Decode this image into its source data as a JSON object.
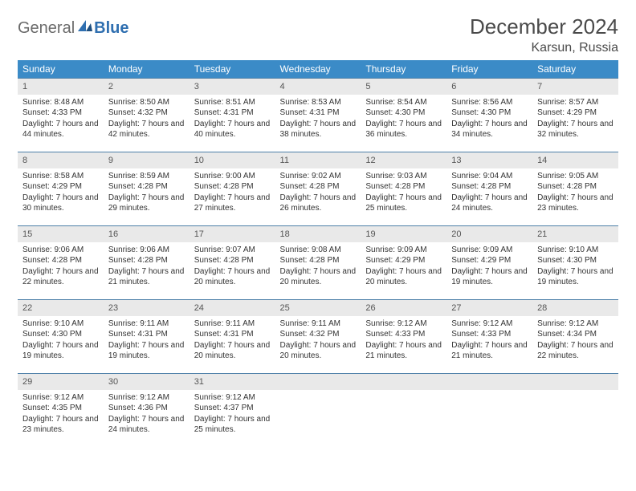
{
  "logo": {
    "general": "General",
    "blue": "Blue"
  },
  "title": "December 2024",
  "location": "Karsun, Russia",
  "colors": {
    "header_bg": "#3b8bc7",
    "header_text": "#ffffff",
    "daynum_bg": "#e9e9e9",
    "row_border": "#4d7fa8",
    "logo_gray": "#6a6a6a",
    "logo_blue": "#2f6fb0"
  },
  "weekdays": [
    "Sunday",
    "Monday",
    "Tuesday",
    "Wednesday",
    "Thursday",
    "Friday",
    "Saturday"
  ],
  "days": [
    {
      "n": "1",
      "sunrise": "8:48 AM",
      "sunset": "4:33 PM",
      "daylight": "7 hours and 44 minutes."
    },
    {
      "n": "2",
      "sunrise": "8:50 AM",
      "sunset": "4:32 PM",
      "daylight": "7 hours and 42 minutes."
    },
    {
      "n": "3",
      "sunrise": "8:51 AM",
      "sunset": "4:31 PM",
      "daylight": "7 hours and 40 minutes."
    },
    {
      "n": "4",
      "sunrise": "8:53 AM",
      "sunset": "4:31 PM",
      "daylight": "7 hours and 38 minutes."
    },
    {
      "n": "5",
      "sunrise": "8:54 AM",
      "sunset": "4:30 PM",
      "daylight": "7 hours and 36 minutes."
    },
    {
      "n": "6",
      "sunrise": "8:56 AM",
      "sunset": "4:30 PM",
      "daylight": "7 hours and 34 minutes."
    },
    {
      "n": "7",
      "sunrise": "8:57 AM",
      "sunset": "4:29 PM",
      "daylight": "7 hours and 32 minutes."
    },
    {
      "n": "8",
      "sunrise": "8:58 AM",
      "sunset": "4:29 PM",
      "daylight": "7 hours and 30 minutes."
    },
    {
      "n": "9",
      "sunrise": "8:59 AM",
      "sunset": "4:28 PM",
      "daylight": "7 hours and 29 minutes."
    },
    {
      "n": "10",
      "sunrise": "9:00 AM",
      "sunset": "4:28 PM",
      "daylight": "7 hours and 27 minutes."
    },
    {
      "n": "11",
      "sunrise": "9:02 AM",
      "sunset": "4:28 PM",
      "daylight": "7 hours and 26 minutes."
    },
    {
      "n": "12",
      "sunrise": "9:03 AM",
      "sunset": "4:28 PM",
      "daylight": "7 hours and 25 minutes."
    },
    {
      "n": "13",
      "sunrise": "9:04 AM",
      "sunset": "4:28 PM",
      "daylight": "7 hours and 24 minutes."
    },
    {
      "n": "14",
      "sunrise": "9:05 AM",
      "sunset": "4:28 PM",
      "daylight": "7 hours and 23 minutes."
    },
    {
      "n": "15",
      "sunrise": "9:06 AM",
      "sunset": "4:28 PM",
      "daylight": "7 hours and 22 minutes."
    },
    {
      "n": "16",
      "sunrise": "9:06 AM",
      "sunset": "4:28 PM",
      "daylight": "7 hours and 21 minutes."
    },
    {
      "n": "17",
      "sunrise": "9:07 AM",
      "sunset": "4:28 PM",
      "daylight": "7 hours and 20 minutes."
    },
    {
      "n": "18",
      "sunrise": "9:08 AM",
      "sunset": "4:28 PM",
      "daylight": "7 hours and 20 minutes."
    },
    {
      "n": "19",
      "sunrise": "9:09 AM",
      "sunset": "4:29 PM",
      "daylight": "7 hours and 20 minutes."
    },
    {
      "n": "20",
      "sunrise": "9:09 AM",
      "sunset": "4:29 PM",
      "daylight": "7 hours and 19 minutes."
    },
    {
      "n": "21",
      "sunrise": "9:10 AM",
      "sunset": "4:30 PM",
      "daylight": "7 hours and 19 minutes."
    },
    {
      "n": "22",
      "sunrise": "9:10 AM",
      "sunset": "4:30 PM",
      "daylight": "7 hours and 19 minutes."
    },
    {
      "n": "23",
      "sunrise": "9:11 AM",
      "sunset": "4:31 PM",
      "daylight": "7 hours and 19 minutes."
    },
    {
      "n": "24",
      "sunrise": "9:11 AM",
      "sunset": "4:31 PM",
      "daylight": "7 hours and 20 minutes."
    },
    {
      "n": "25",
      "sunrise": "9:11 AM",
      "sunset": "4:32 PM",
      "daylight": "7 hours and 20 minutes."
    },
    {
      "n": "26",
      "sunrise": "9:12 AM",
      "sunset": "4:33 PM",
      "daylight": "7 hours and 21 minutes."
    },
    {
      "n": "27",
      "sunrise": "9:12 AM",
      "sunset": "4:33 PM",
      "daylight": "7 hours and 21 minutes."
    },
    {
      "n": "28",
      "sunrise": "9:12 AM",
      "sunset": "4:34 PM",
      "daylight": "7 hours and 22 minutes."
    },
    {
      "n": "29",
      "sunrise": "9:12 AM",
      "sunset": "4:35 PM",
      "daylight": "7 hours and 23 minutes."
    },
    {
      "n": "30",
      "sunrise": "9:12 AM",
      "sunset": "4:36 PM",
      "daylight": "7 hours and 24 minutes."
    },
    {
      "n": "31",
      "sunrise": "9:12 AM",
      "sunset": "4:37 PM",
      "daylight": "7 hours and 25 minutes."
    }
  ],
  "labels": {
    "sunrise": "Sunrise: ",
    "sunset": "Sunset: ",
    "daylight": "Daylight: "
  }
}
